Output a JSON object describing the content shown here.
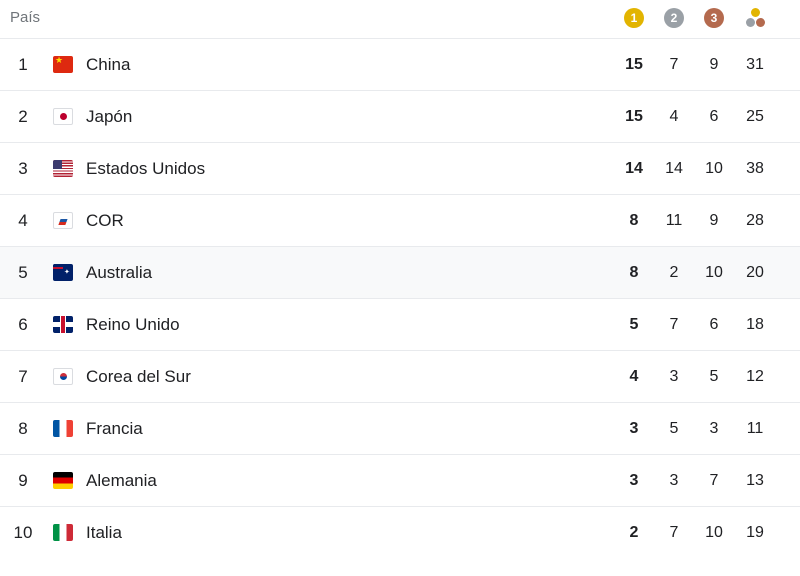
{
  "header": {
    "country_label": "País",
    "gold_label": "1",
    "silver_label": "2",
    "bronze_label": "3",
    "total_icon": "medals-total-icon"
  },
  "colors": {
    "gold": "#e2b400",
    "silver": "#9aa0a6",
    "bronze": "#b46a4e",
    "row_highlight": "#f8f9fa"
  },
  "rows": [
    {
      "rank": "1",
      "flag": "china-flag-icon",
      "country": "China",
      "gold": "15",
      "silver": "7",
      "bronze": "9",
      "total": "31"
    },
    {
      "rank": "2",
      "flag": "japan-flag-icon",
      "country": "Japón",
      "gold": "15",
      "silver": "4",
      "bronze": "6",
      "total": "25"
    },
    {
      "rank": "3",
      "flag": "usa-flag-icon",
      "country": "Estados Unidos",
      "gold": "14",
      "silver": "14",
      "bronze": "10",
      "total": "38"
    },
    {
      "rank": "4",
      "flag": "roc-flag-icon",
      "country": "COR",
      "gold": "8",
      "silver": "11",
      "bronze": "9",
      "total": "28"
    },
    {
      "rank": "5",
      "flag": "australia-flag-icon",
      "country": "Australia",
      "gold": "8",
      "silver": "2",
      "bronze": "10",
      "total": "20"
    },
    {
      "rank": "6",
      "flag": "uk-flag-icon",
      "country": "Reino Unido",
      "gold": "5",
      "silver": "7",
      "bronze": "6",
      "total": "18"
    },
    {
      "rank": "7",
      "flag": "south-korea-flag-icon",
      "country": "Corea del Sur",
      "gold": "4",
      "silver": "3",
      "bronze": "5",
      "total": "12"
    },
    {
      "rank": "8",
      "flag": "france-flag-icon",
      "country": "Francia",
      "gold": "3",
      "silver": "5",
      "bronze": "3",
      "total": "11"
    },
    {
      "rank": "9",
      "flag": "germany-flag-icon",
      "country": "Alemania",
      "gold": "3",
      "silver": "3",
      "bronze": "7",
      "total": "13"
    },
    {
      "rank": "10",
      "flag": "italy-flag-icon",
      "country": "Italia",
      "gold": "2",
      "silver": "7",
      "bronze": "10",
      "total": "19"
    }
  ]
}
